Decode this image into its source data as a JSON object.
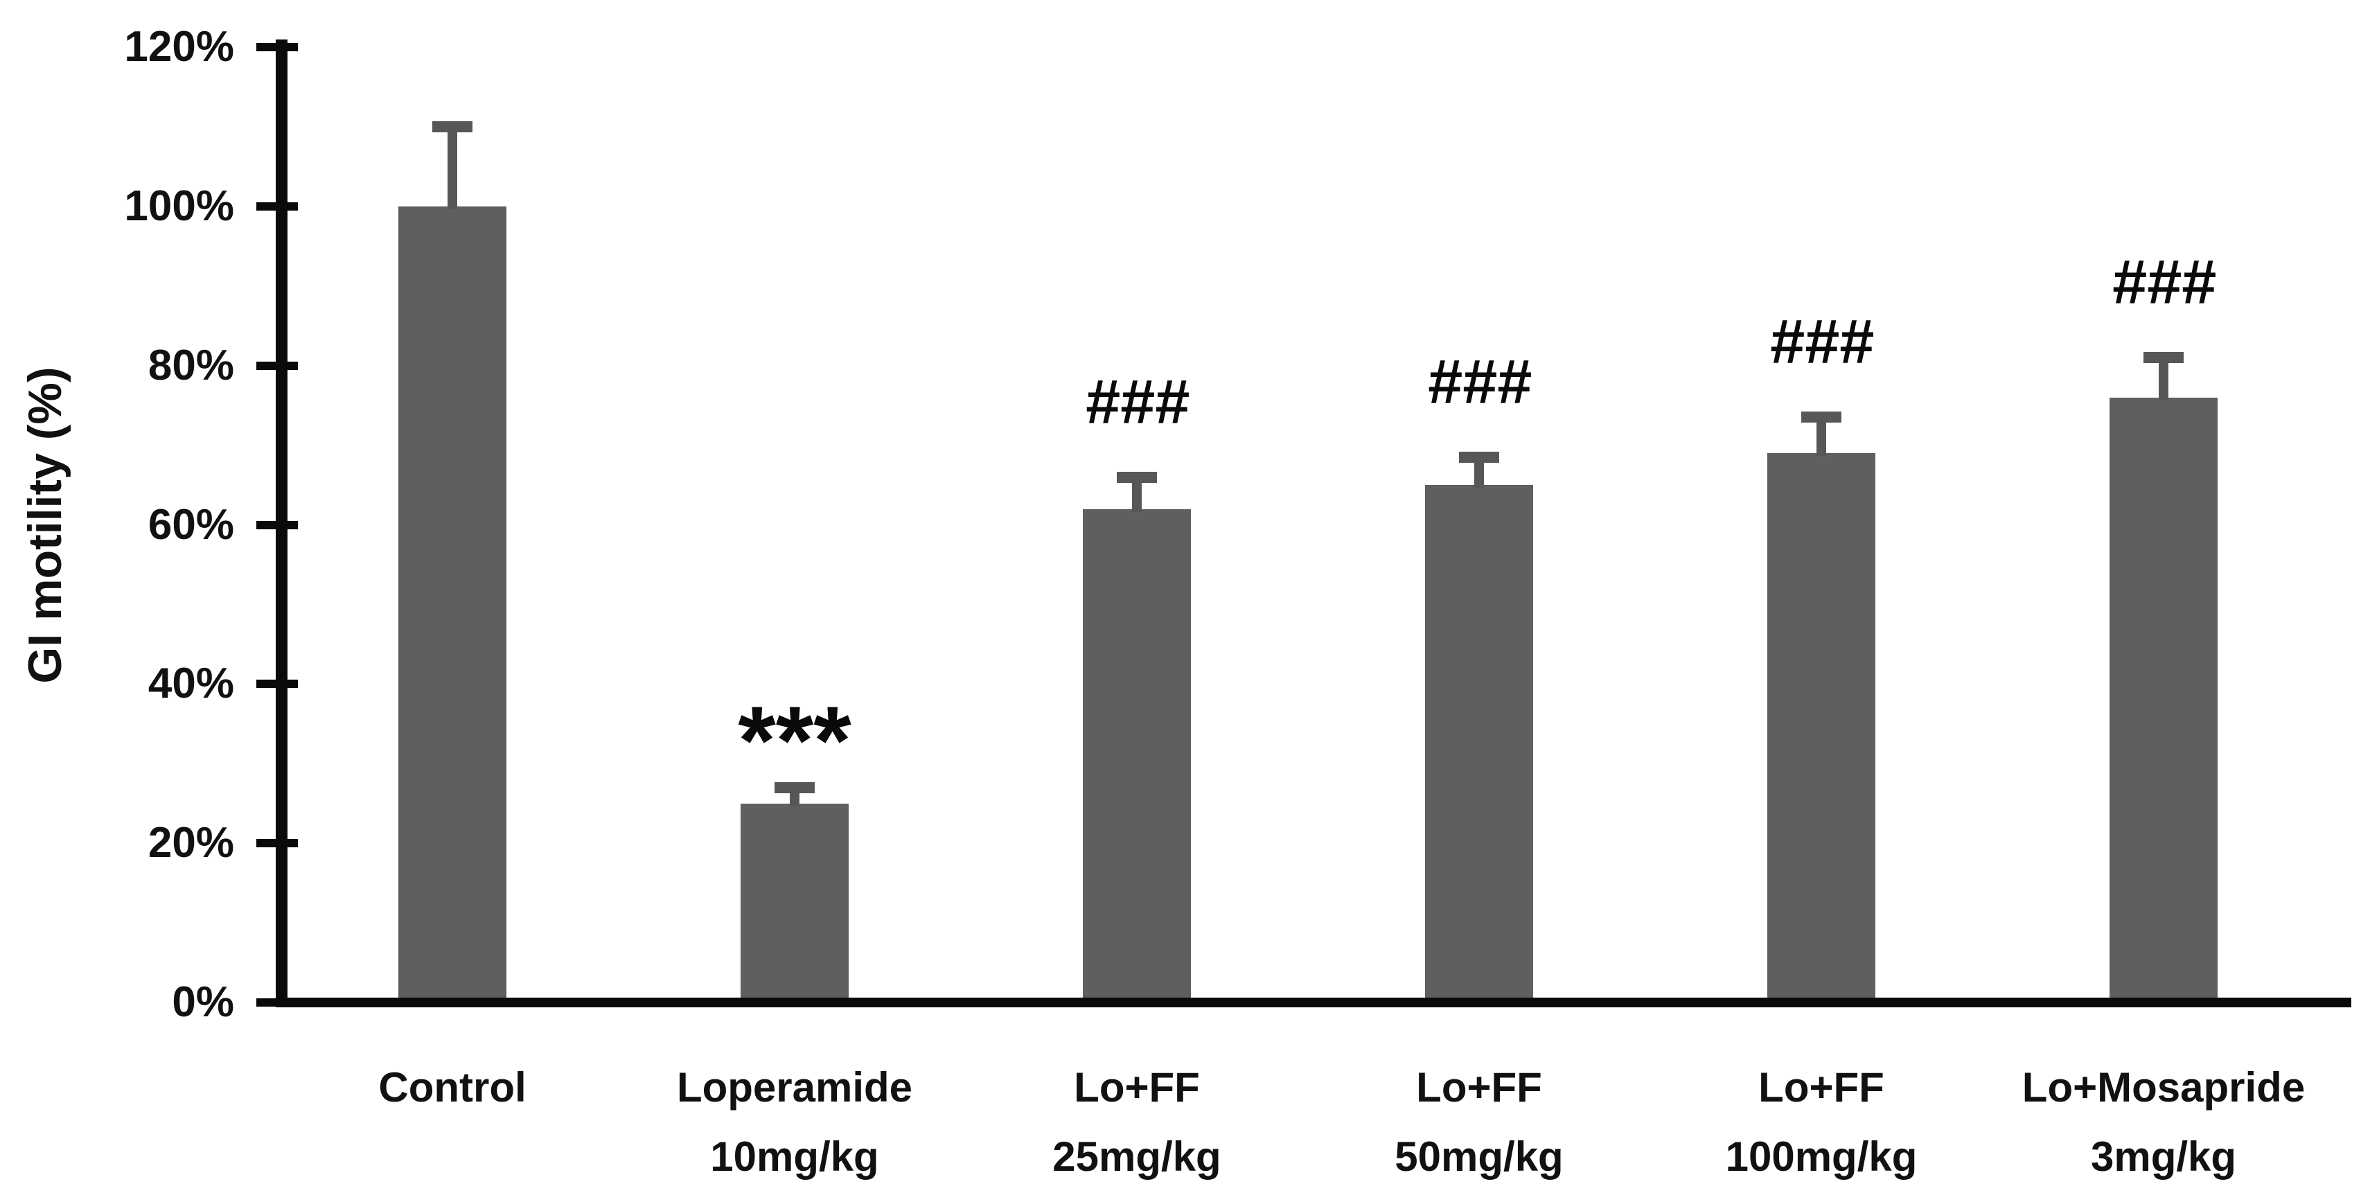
{
  "chart_data": {
    "type": "bar",
    "title": "",
    "xlabel": "",
    "ylabel": "GI motility (%)",
    "ylim_pct": [
      0,
      120
    ],
    "ytick_step_pct": 20,
    "yticks": [
      {
        "label": "120%",
        "value_pct": 120
      },
      {
        "label": "100%",
        "value_pct": 100
      },
      {
        "label": "80%",
        "value_pct": 80
      },
      {
        "label": "60%",
        "value_pct": 60
      },
      {
        "label": "40%",
        "value_pct": 40
      },
      {
        "label": "20%",
        "value_pct": 20
      },
      {
        "label": "0%",
        "value_pct": 0
      }
    ],
    "grid": false,
    "legend": "none",
    "bars": [
      {
        "label_line1": "Control",
        "label_line2": "",
        "value_pct": 100,
        "upper_error_pct": 10,
        "annotation": ""
      },
      {
        "label_line1": "Loperamide",
        "label_line2": "10mg/kg",
        "value_pct": 25,
        "upper_error_pct": 2,
        "annotation": "***"
      },
      {
        "label_line1": "Lo+FF",
        "label_line2": "25mg/kg",
        "value_pct": 62,
        "upper_error_pct": 4,
        "annotation": "###"
      },
      {
        "label_line1": "Lo+FF",
        "label_line2": "50mg/kg",
        "value_pct": 65,
        "upper_error_pct": 3.5,
        "annotation": "###"
      },
      {
        "label_line1": "Lo+FF",
        "label_line2": "100mg/kg",
        "value_pct": 69,
        "upper_error_pct": 4.5,
        "annotation": "###"
      },
      {
        "label_line1": "Lo+Mosapride",
        "label_line2": "3mg/kg",
        "value_pct": 76,
        "upper_error_pct": 5,
        "annotation": "###"
      }
    ],
    "colors": {
      "bar_fill": "#5f5f5f",
      "error_bar": "#575757",
      "axis": "#0a0a0a",
      "text": "#111111",
      "background": "#ffffff"
    }
  }
}
